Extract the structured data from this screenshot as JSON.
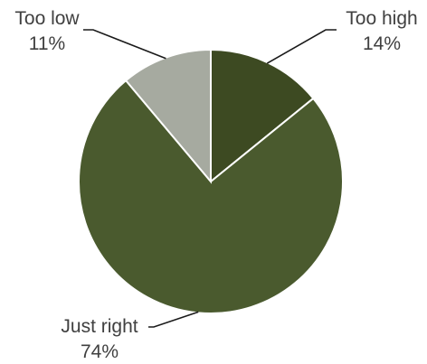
{
  "chart_data": {
    "type": "pie",
    "title": "",
    "slices": [
      {
        "label": "Too high",
        "value": 14,
        "display": "14%",
        "color": "#3d4a22"
      },
      {
        "label": "Just right",
        "value": 74,
        "display": "74%",
        "color": "#4a5a2e"
      },
      {
        "label": "Too low",
        "value": 11,
        "display": "11%",
        "color": "#a6aaa0"
      }
    ],
    "start_angle_deg": 0,
    "direction": "clockwise",
    "legend": "none",
    "data_labels": "outside-with-leader-lines"
  }
}
